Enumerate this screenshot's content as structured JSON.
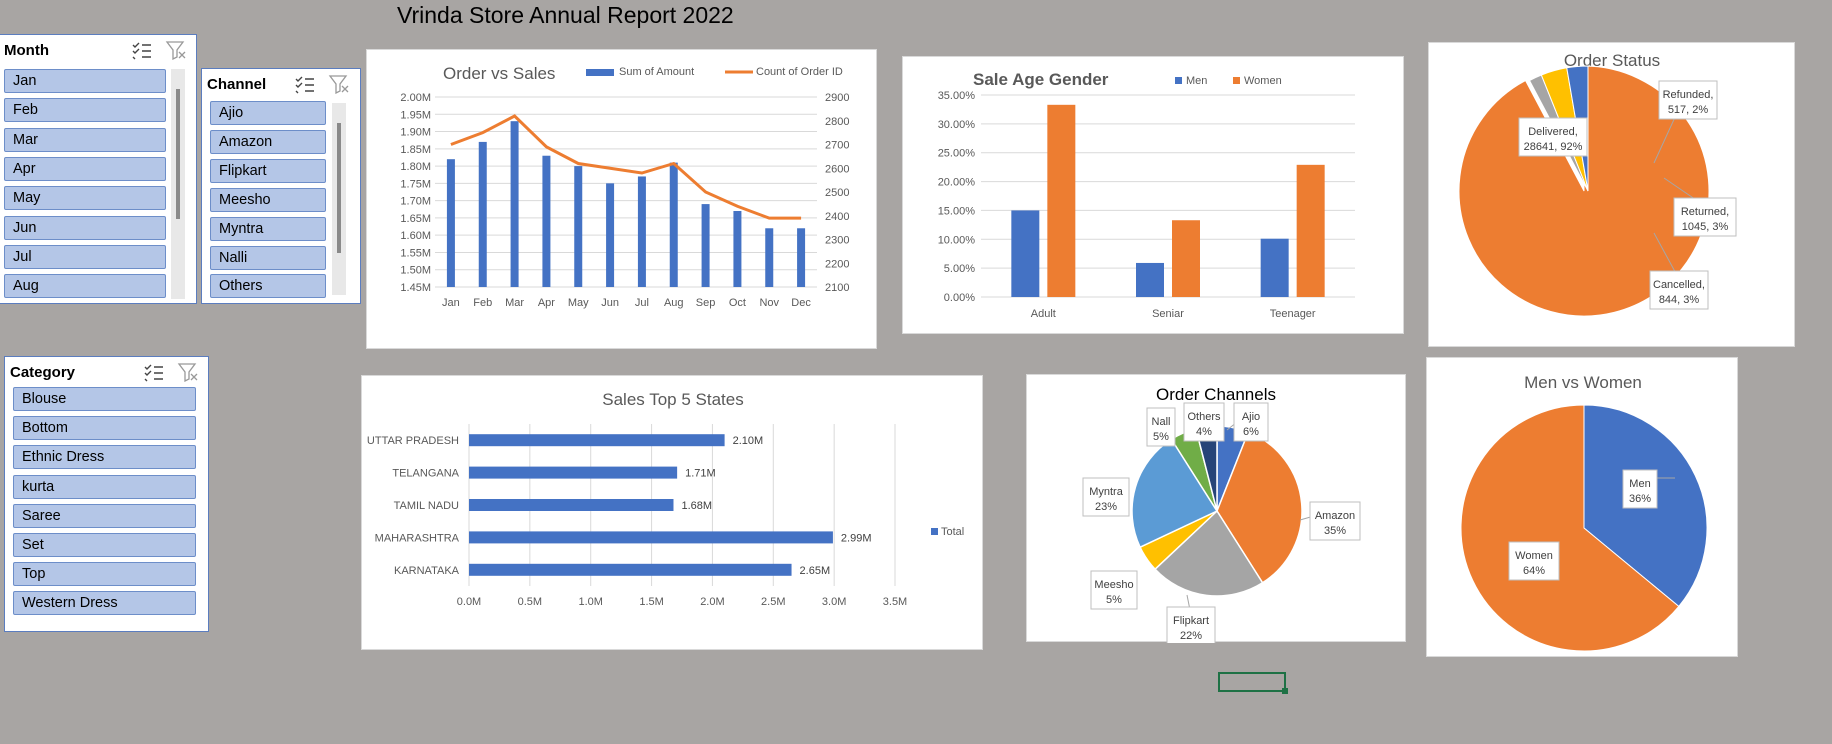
{
  "report_title": "Vrinda Store Annual Report 2022",
  "slicers": {
    "month": {
      "header": "Month",
      "items": [
        "Jan",
        "Feb",
        "Mar",
        "Apr",
        "May",
        "Jun",
        "Jul",
        "Aug"
      ]
    },
    "channel": {
      "header": "Channel",
      "items": [
        "Ajio",
        "Amazon",
        "Flipkart",
        "Meesho",
        "Myntra",
        "Nalli",
        "Others"
      ]
    },
    "category": {
      "header": "Category",
      "items": [
        "Blouse",
        "Bottom",
        "Ethnic Dress",
        "kurta",
        "Saree",
        "Set",
        "Top",
        "Western Dress"
      ]
    }
  },
  "chart_data": [
    {
      "id": "order_vs_sales",
      "type": "bar",
      "title": "Order vs Sales",
      "categories": [
        "Jan",
        "Feb",
        "Mar",
        "Apr",
        "May",
        "Jun",
        "Jul",
        "Aug",
        "Sep",
        "Oct",
        "Nov",
        "Dec"
      ],
      "series": [
        {
          "name": "Sum of Amount",
          "kind": "bar",
          "axis": "left",
          "color": "#4472c4",
          "values": [
            1.82,
            1.87,
            1.93,
            1.83,
            1.8,
            1.75,
            1.77,
            1.81,
            1.69,
            1.67,
            1.62,
            1.62
          ]
        },
        {
          "name": "Count of Order ID",
          "kind": "line",
          "axis": "right",
          "color": "#ed7d31",
          "values": [
            2700,
            2750,
            2820,
            2690,
            2620,
            2600,
            2580,
            2620,
            2500,
            2440,
            2390,
            2390
          ]
        }
      ],
      "y_left": {
        "min": 1.45,
        "max": 2.0,
        "ticks": [
          "1.45M",
          "1.50M",
          "1.55M",
          "1.60M",
          "1.65M",
          "1.70M",
          "1.75M",
          "1.80M",
          "1.85M",
          "1.90M",
          "1.95M",
          "2.00M"
        ]
      },
      "y_right": {
        "min": 2100,
        "max": 2900,
        "ticks": [
          "2100",
          "2200",
          "2300",
          "2400",
          "2500",
          "2600",
          "2700",
          "2800",
          "2900"
        ]
      },
      "legend": "top",
      "grid": true
    },
    {
      "id": "sale_age_gender",
      "type": "bar",
      "title": "Sale Age Gender",
      "categories": [
        "Adult",
        "Seniar",
        "Teenager"
      ],
      "series": [
        {
          "name": "Men",
          "color": "#4472c4",
          "values": [
            15.0,
            5.9,
            10.1
          ]
        },
        {
          "name": "Women",
          "color": "#ed7d31",
          "values": [
            33.3,
            13.3,
            22.9
          ]
        }
      ],
      "ylim": [
        0,
        35
      ],
      "y_ticks": [
        "0.00%",
        "5.00%",
        "10.00%",
        "15.00%",
        "20.00%",
        "25.00%",
        "30.00%",
        "35.00%"
      ],
      "legend": "top",
      "grid": true
    },
    {
      "id": "order_status",
      "type": "pie",
      "title": "Order Status",
      "slices": [
        {
          "name": "Delivered",
          "value": 28641,
          "percent": 92,
          "label": [
            "Delivered,",
            "28641, 92%"
          ],
          "color": "#ed7d31"
        },
        {
          "name": "Refunded",
          "value": 517,
          "percent": 2,
          "label": [
            "Refunded,",
            "517, 2%"
          ],
          "color": "#a5a5a5"
        },
        {
          "name": "Returned",
          "value": 1045,
          "percent": 3,
          "label": [
            "Returned,",
            "1045, 3%"
          ],
          "color": "#ffc000"
        },
        {
          "name": "Cancelled",
          "value": 844,
          "percent": 3,
          "label": [
            "Cancelled,",
            "844, 3%"
          ],
          "color": "#4472c4"
        }
      ]
    },
    {
      "id": "sales_top_states",
      "type": "bar",
      "orientation": "horizontal",
      "title": "Sales Top 5 States",
      "categories": [
        "UTTAR PRADESH",
        "TELANGANA",
        "TAMIL NADU",
        "MAHARASHTRA",
        "KARNATAKA"
      ],
      "series": [
        {
          "name": "Total",
          "color": "#4472c4",
          "values": [
            2.1,
            1.71,
            1.68,
            2.99,
            2.65
          ],
          "labels": [
            "2.10M",
            "1.71M",
            "1.68M",
            "2.99M",
            "2.65M"
          ]
        }
      ],
      "xlim": [
        0,
        3.5
      ],
      "x_ticks": [
        "0.0M",
        "0.5M",
        "1.0M",
        "1.5M",
        "2.0M",
        "2.5M",
        "3.0M",
        "3.5M"
      ],
      "legend": "right",
      "grid": true
    },
    {
      "id": "order_channels",
      "type": "pie",
      "title": "Order Channels",
      "slices": [
        {
          "name": "Ajio",
          "percent": 6,
          "color": "#4472c4",
          "label": [
            "Ajio",
            "6%"
          ]
        },
        {
          "name": "Amazon",
          "percent": 35,
          "color": "#ed7d31",
          "label": [
            "Amazon",
            "35%"
          ]
        },
        {
          "name": "Flipkart",
          "percent": 22,
          "color": "#a5a5a5",
          "label": [
            "Flipkart",
            "22%"
          ]
        },
        {
          "name": "Meesho",
          "percent": 5,
          "color": "#ffc000",
          "label": [
            "Meesho",
            "5%"
          ]
        },
        {
          "name": "Myntra",
          "percent": 23,
          "color": "#5b9bd5",
          "label": [
            "Myntra",
            "23%"
          ]
        },
        {
          "name": "Nalli",
          "percent": 5,
          "color": "#70ad47",
          "label": [
            "Nall",
            "5%"
          ]
        },
        {
          "name": "Others",
          "percent": 4,
          "color": "#264478",
          "label": [
            "Others",
            "4%"
          ]
        }
      ]
    },
    {
      "id": "men_vs_women",
      "type": "pie",
      "title": "Men vs Women",
      "slices": [
        {
          "name": "Men",
          "percent": 36,
          "color": "#4472c4",
          "label": [
            "Men",
            "36%"
          ]
        },
        {
          "name": "Women",
          "percent": 64,
          "color": "#ed7d31",
          "label": [
            "Women",
            "64%"
          ]
        }
      ]
    }
  ]
}
